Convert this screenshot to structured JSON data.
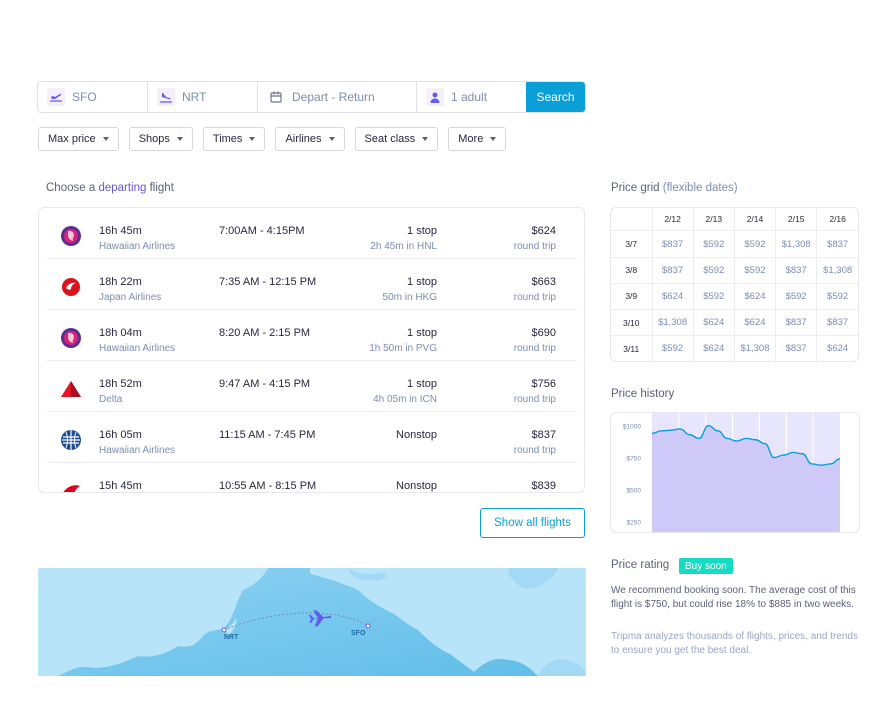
{
  "search": {
    "from": "SFO",
    "to": "NRT",
    "dates_placeholder": "Depart - Return",
    "passengers": "1 adult",
    "button": "Search"
  },
  "filters": [
    "Max price",
    "Shops",
    "Times",
    "Airlines",
    "Seat class",
    "More"
  ],
  "departing_heading": {
    "prefix": "Choose a ",
    "accent": "departing",
    "suffix": " flight"
  },
  "flights": [
    {
      "logo": "hawaiian-airlines-logo-icon",
      "duration": "16h 45m",
      "airline": "Hawaiian Airlines",
      "times": "7:00AM - 4:15PM",
      "stops": "1 stop",
      "stop_info": "2h 45m in HNL",
      "price": "$624",
      "price_type": "round trip"
    },
    {
      "logo": "japan-airlines-logo-icon",
      "duration": "18h 22m",
      "airline": "Japan Airlines",
      "times": "7:35 AM - 12:15 PM",
      "stops": "1 stop",
      "stop_info": "50m in HKG",
      "price": "$663",
      "price_type": "round trip"
    },
    {
      "logo": "hawaiian-airlines-logo-icon",
      "duration": "18h 04m",
      "airline": "Hawaiian Airlines",
      "times": "8:20 AM - 2:15 PM",
      "stops": "1 stop",
      "stop_info": "1h 50m in PVG",
      "price": "$690",
      "price_type": "round trip"
    },
    {
      "logo": "delta-logo-icon",
      "duration": "18h 52m",
      "airline": "Delta",
      "times": "9:47 AM - 4:15 PM",
      "stops": "1 stop",
      "stop_info": "4h 05m in ICN",
      "price": "$756",
      "price_type": "round trip"
    },
    {
      "logo": "united-logo-icon",
      "duration": "16h 05m",
      "airline": "Hawaiian Airlines",
      "times": "11:15 AM - 7:45 PM",
      "stops": "Nonstop",
      "stop_info": "",
      "price": "$837",
      "price_type": "round trip"
    },
    {
      "logo": "qantas-logo-icon",
      "duration": "15h 45m",
      "airline": "",
      "times": "10:55 AM - 8:15 PM",
      "stops": "Nonstop",
      "stop_info": "",
      "price": "$839",
      "price_type": ""
    }
  ],
  "show_all": "Show all flights",
  "map": {
    "origin": "SFO",
    "destination": "NRT"
  },
  "price_grid": {
    "title": "Price grid",
    "subtitle": "(flexible dates)",
    "columns": [
      "2/12",
      "2/13",
      "2/14",
      "2/15",
      "2/16"
    ],
    "rows": [
      {
        "date": "3/7",
        "prices": [
          "$837",
          "$592",
          "$592",
          "$1,308",
          "$837"
        ]
      },
      {
        "date": "3/8",
        "prices": [
          "$837",
          "$592",
          "$592",
          "$837",
          "$1,308"
        ]
      },
      {
        "date": "3/9",
        "prices": [
          "$624",
          "$592",
          "$624",
          "$592",
          "$592"
        ]
      },
      {
        "date": "3/10",
        "prices": [
          "$1,308",
          "$624",
          "$624",
          "$837",
          "$837"
        ]
      },
      {
        "date": "3/11",
        "prices": [
          "$592",
          "$624",
          "$1,308",
          "$837",
          "$624"
        ]
      }
    ]
  },
  "price_history": {
    "title": "Price history",
    "chart_data": {
      "type": "area",
      "y_ticks": [
        "$1000",
        "$750",
        "$500",
        "$250"
      ],
      "ylim": [
        150,
        1100
      ],
      "x": [
        0,
        1,
        2,
        3,
        4,
        5,
        6,
        7,
        8,
        9,
        10,
        11,
        12,
        13,
        14,
        15,
        16,
        17,
        18,
        19,
        20
      ],
      "values": [
        940,
        960,
        965,
        975,
        930,
        900,
        1000,
        960,
        900,
        880,
        900,
        890,
        860,
        750,
        770,
        790,
        780,
        700,
        690,
        700,
        740
      ],
      "color": "#0b9fd8",
      "fill": "#c9c3f5",
      "grid": true
    }
  },
  "price_rating": {
    "title": "Price rating",
    "badge": "Buy soon",
    "text": "We recommend booking soon. The average cost of this flight is $750, but could rise 18% to $885 in two weeks.",
    "note": "Tripma analyzes thousands of flights, prices, and trends to ensure you get the best deal."
  },
  "colors": {
    "accent": "#0b9fd8",
    "purple": "#6a55d0",
    "badge": "#16dcc4"
  }
}
